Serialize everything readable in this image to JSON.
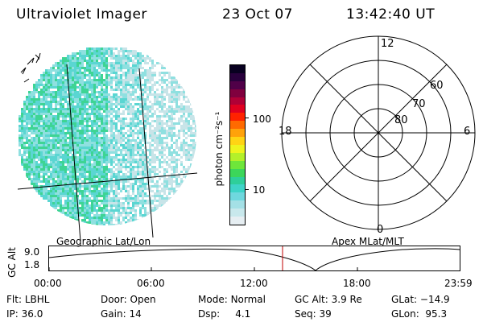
{
  "header": {
    "instrument": "Ultraviolet Imager",
    "date": "23 Oct 07",
    "time": "13:42:40 UT"
  },
  "colorbar": {
    "unit_label": "photon cm⁻²s⁻¹",
    "ticks": [
      "100",
      "10"
    ],
    "colors": [
      "#e6eef2",
      "#c8e8ec",
      "#a4e0e6",
      "#6fd8de",
      "#3fd4c8",
      "#2ecf9a",
      "#3cd65a",
      "#6ee63a",
      "#b4f02a",
      "#eef41e",
      "#ffd414",
      "#ffa20a",
      "#ff6a00",
      "#ff2200",
      "#e00020",
      "#b00036",
      "#80003e",
      "#500048",
      "#28003c",
      "#080020"
    ]
  },
  "polar": {
    "labels": {
      "top": "12",
      "left": "18",
      "right": "6",
      "bottom": "0"
    },
    "lat_labels": [
      "60",
      "70",
      "80"
    ]
  },
  "globe": {
    "colors": {
      "dense": "#3ed494",
      "mid": "#5ad6d2",
      "light": "#8fe0e0",
      "faint": "#c8e4e8"
    }
  },
  "timeline": {
    "left_title": "Geographic Lat/Lon",
    "right_title": "Apex MLat/MLT",
    "axis_label": "GC Alt",
    "y_ticks": [
      "9.0",
      "1.8"
    ],
    "x_ticks": [
      "00:00",
      "06:00",
      "12:00",
      "18:00",
      "23:59"
    ],
    "marker_color": "#c00000"
  },
  "status": {
    "filter": {
      "label": "Flt:",
      "value": "LBHL"
    },
    "ip": {
      "label": "IP:",
      "value": "36.0"
    },
    "door": {
      "label": "Door:",
      "value": "Open"
    },
    "gain": {
      "label": "Gain:",
      "value": "14"
    },
    "mode": {
      "label": "Mode:",
      "value": "Normal"
    },
    "dsp": {
      "label": "Dsp:",
      "value": "4.1"
    },
    "gc_alt": {
      "label": "GC Alt:",
      "value": "3.9 Re"
    },
    "seq": {
      "label": "Seq:",
      "value": "39"
    },
    "glat": {
      "label": "GLat:",
      "value": "−14.9"
    },
    "glon": {
      "label": "GLon:",
      "value": "95.3"
    }
  }
}
